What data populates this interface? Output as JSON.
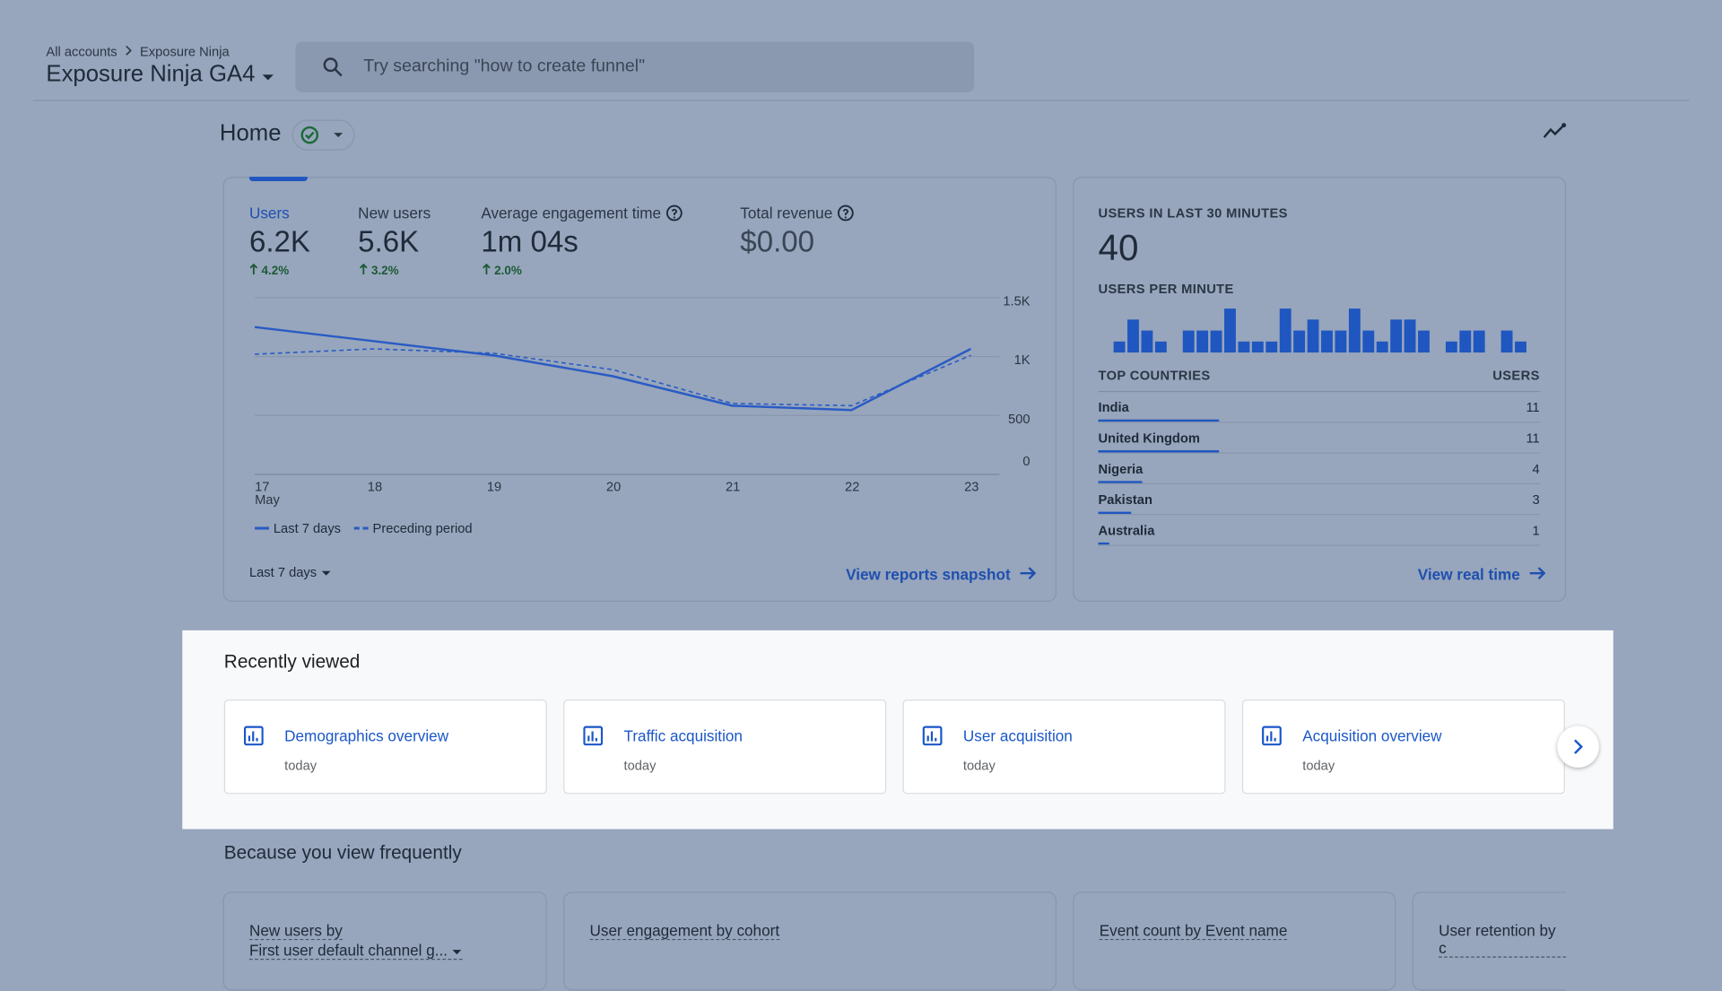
{
  "header": {
    "breadcrumb": [
      "All accounts",
      "Exposure Ninja"
    ],
    "property": "Exposure Ninja GA4",
    "search_placeholder": "Try searching \"how to create funnel\""
  },
  "page_title": "Home",
  "overview": {
    "metrics": [
      {
        "label": "Users",
        "value": "6.2K",
        "change": "4.2%"
      },
      {
        "label": "New users",
        "value": "5.6K",
        "change": "3.2%"
      },
      {
        "label": "Average engagement time",
        "value": "1m 04s",
        "change": "2.0%"
      },
      {
        "label": "Total revenue",
        "value": "$0.00"
      }
    ],
    "chart": {
      "type": "line",
      "categories": [
        "17",
        "18",
        "19",
        "20",
        "21",
        "22",
        "23"
      ],
      "month_label": "May",
      "series": [
        {
          "name": "Last 7 days",
          "color": "#2a5bc4",
          "dashed": false,
          "values": [
            1250,
            1130,
            1010,
            833,
            583,
            546,
            1065
          ]
        },
        {
          "name": "Preceding period",
          "color": "#2a5bc4",
          "dashed": true,
          "values": [
            1020,
            1065,
            1028,
            889,
            602,
            583,
            1010
          ]
        }
      ],
      "ylim": [
        0,
        1500
      ],
      "yticks": [
        0,
        500,
        {
          "value": 1000,
          "label": "1K"
        },
        {
          "value": 1500,
          "label": "1.5K"
        }
      ],
      "grid": true
    },
    "date_range": "Last 7 days",
    "link": "View reports snapshot"
  },
  "realtime": {
    "title": "USERS IN LAST 30 MINUTES",
    "value": "40",
    "per_minute": {
      "type": "bar",
      "title": "USERS PER MINUTE",
      "color": "#1f56c0",
      "values": [
        1,
        3,
        2,
        1,
        0,
        2,
        2,
        2,
        4,
        1,
        1,
        1,
        4,
        2,
        3,
        2,
        2,
        4,
        2,
        1,
        3,
        3,
        2,
        0,
        1,
        2,
        2,
        0,
        2,
        1
      ]
    },
    "countries": {
      "header": [
        "TOP COUNTRIES",
        "USERS"
      ],
      "rows": [
        {
          "name": "India",
          "users": 11
        },
        {
          "name": "United Kingdom",
          "users": 11
        },
        {
          "name": "Nigeria",
          "users": 4
        },
        {
          "name": "Pakistan",
          "users": 3
        },
        {
          "name": "Australia",
          "users": 1
        }
      ]
    },
    "link": "View real time"
  },
  "recently_viewed": {
    "title": "Recently viewed",
    "cards": [
      {
        "title": "Demographics overview",
        "time": "today"
      },
      {
        "title": "Traffic acquisition",
        "time": "today"
      },
      {
        "title": "User acquisition",
        "time": "today"
      },
      {
        "title": "Acquisition overview",
        "time": "today"
      }
    ]
  },
  "frequent": {
    "title": "Because you view frequently",
    "cards": [
      {
        "title": "New users by",
        "subtitle": "First user default channel g..."
      },
      {
        "title": "User engagement by cohort"
      },
      {
        "title": "Event count by Event name"
      },
      {
        "title": "User retention by c"
      }
    ]
  }
}
